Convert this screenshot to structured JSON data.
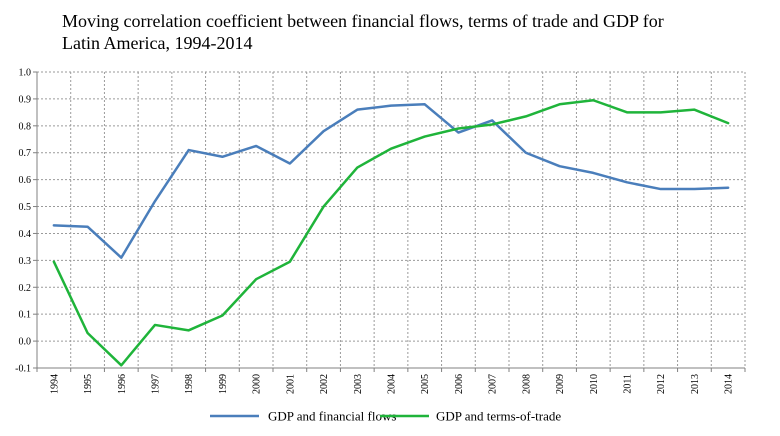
{
  "chart_data": {
    "type": "line",
    "title_lines": [
      "Moving correlation coefficient between financial flows, terms of trade and GDP for",
      "Latin America, 1994-2014"
    ],
    "title": "Moving correlation coefficient between financial flows, terms of trade and GDP for Latin America, 1994-2014",
    "xlabel": "",
    "ylabel": "",
    "x": [
      "1994",
      "1995",
      "1996",
      "1997",
      "1998",
      "1999",
      "2000",
      "2001",
      "2002",
      "2003",
      "2004",
      "2005",
      "2006",
      "2007",
      "2008",
      "2009",
      "2010",
      "2011",
      "2012",
      "2013",
      "2014"
    ],
    "y_ticks": [
      "1.0",
      "0.9",
      "0.8",
      "0.7",
      "0.6",
      "0.5",
      "0.4",
      "0.3",
      "0.2",
      "0.1",
      "0.0",
      "-0.1"
    ],
    "ylim": [
      -0.1,
      1.0
    ],
    "grid": true,
    "legend_position": "bottom",
    "series": [
      {
        "name": "GDP and financial flows",
        "color": "#4a7ebb",
        "values": [
          0.43,
          0.425,
          0.31,
          0.52,
          0.71,
          0.685,
          0.725,
          0.66,
          0.78,
          0.86,
          0.875,
          0.88,
          0.775,
          0.82,
          0.7,
          0.65,
          0.625,
          0.59,
          0.565,
          0.565,
          0.57
        ]
      },
      {
        "name": "GDP and terms-of-trade",
        "color": "#1fb43a",
        "values": [
          0.295,
          0.03,
          -0.09,
          0.06,
          0.04,
          0.095,
          0.23,
          0.295,
          0.5,
          0.645,
          0.715,
          0.76,
          0.79,
          0.805,
          0.835,
          0.88,
          0.895,
          0.85,
          0.85,
          0.86,
          0.81
        ]
      }
    ]
  }
}
